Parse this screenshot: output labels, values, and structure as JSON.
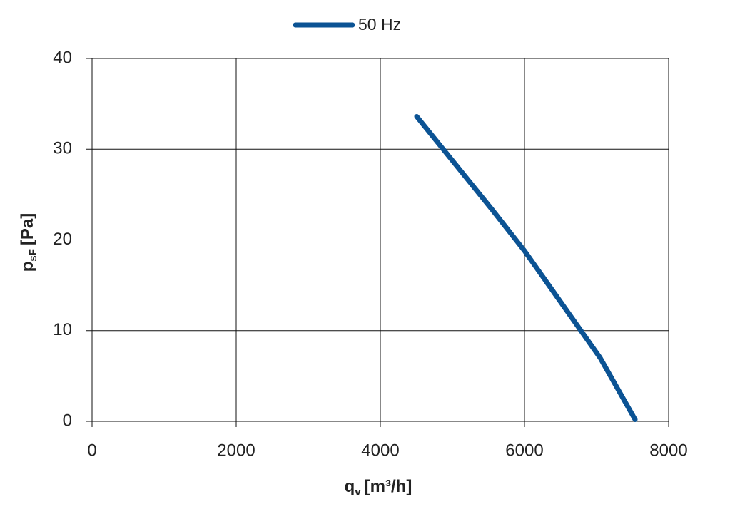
{
  "chart_data": {
    "type": "line",
    "xlabel": {
      "symbol": "q",
      "subscript": "v",
      "unit": "[m³/h]"
    },
    "ylabel": {
      "symbol": "p",
      "subscript": "sF",
      "unit": "[Pa]"
    },
    "x": [
      4505,
      5555,
      6000,
      7050,
      7535
    ],
    "series": [
      {
        "name": "50 Hz",
        "color": "#0b5394",
        "values": [
          33.6,
          23.3,
          18.8,
          7.0,
          0.2
        ]
      }
    ],
    "xlim": [
      0,
      8000
    ],
    "xticks": [
      0,
      2000,
      4000,
      6000,
      8000
    ],
    "ylim": [
      0,
      40
    ],
    "yticks": [
      0,
      10,
      20,
      30,
      40
    ],
    "grid": true,
    "legend": "top"
  }
}
